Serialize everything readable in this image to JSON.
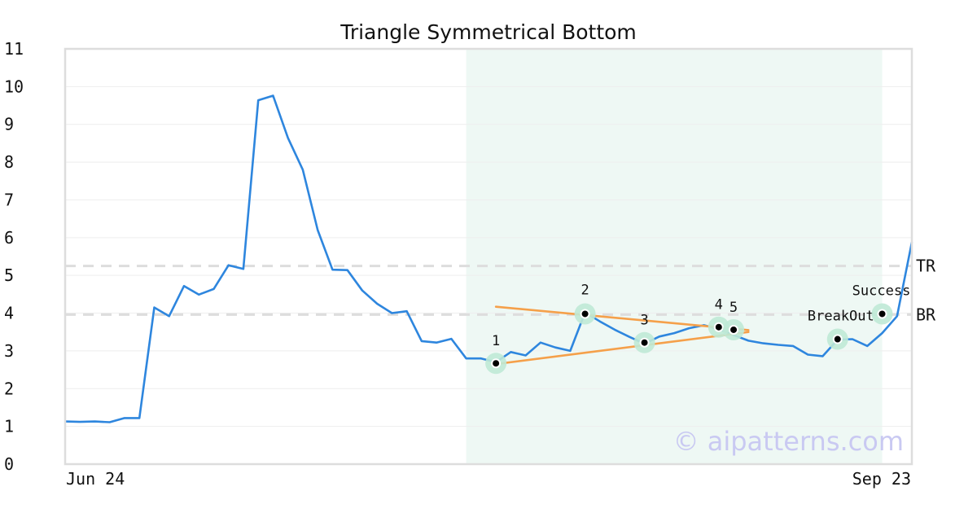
{
  "chart_data": {
    "type": "line",
    "title": "Triangle Symmetrical Bottom",
    "xlabel": "",
    "ylabel": "",
    "ylim": [
      0,
      11
    ],
    "y_ticks": [
      "0",
      "1",
      "2",
      "3",
      "4",
      "5",
      "6",
      "7",
      "8",
      "9",
      "10",
      "11"
    ],
    "x_tick_labels": [
      "Jun 24",
      "Sep 23"
    ],
    "grid": "horizontal",
    "line_color": "#2e86de",
    "trend_color": "#f5a04a",
    "highlight_color": "#eef8f4",
    "marker_halo_color": "#bfe9d6",
    "ref_line_color": "#dddddd",
    "series": [
      {
        "values": [
          1.13,
          1.12,
          1.13,
          1.11,
          1.22,
          1.22,
          4.15,
          3.92,
          4.72,
          4.49,
          4.64,
          5.27,
          5.17,
          9.64,
          9.76,
          8.64,
          7.8,
          6.2,
          5.15,
          5.14,
          4.6,
          4.25,
          4.0,
          4.05,
          3.26,
          3.22,
          3.32,
          2.8,
          2.8,
          2.7,
          2.97,
          2.88,
          3.22,
          3.09,
          3.0,
          4.02,
          3.78,
          3.56,
          3.37,
          3.19,
          3.38,
          3.47,
          3.6,
          3.68,
          3.58,
          3.42,
          3.27,
          3.2,
          3.16,
          3.13,
          2.9,
          2.86,
          3.3,
          3.31,
          3.13,
          3.47,
          3.92,
          5.88
        ]
      }
    ],
    "highlight_range": [
      27,
      55
    ],
    "trend_lines": [
      {
        "from": [
          29,
          4.17
        ],
        "to": [
          46,
          3.55
        ]
      },
      {
        "from": [
          29,
          2.65
        ],
        "to": [
          46,
          3.5
        ]
      }
    ],
    "pattern_points": [
      {
        "label": "1",
        "x": 29,
        "y": 2.67
      },
      {
        "label": "2",
        "x": 35,
        "y": 3.98
      },
      {
        "label": "3",
        "x": 39,
        "y": 3.22
      },
      {
        "label": "4",
        "x": 44,
        "y": 3.63
      },
      {
        "label": "5",
        "x": 45,
        "y": 3.56
      },
      {
        "label": "BreakOut",
        "x": 52,
        "y": 3.31
      },
      {
        "label": "Success",
        "x": 55,
        "y": 3.98
      }
    ],
    "reference_lines": [
      {
        "label": "TR",
        "y": 5.25
      },
      {
        "label": "BR",
        "y": 3.96
      }
    ],
    "watermark": "© aipatterns.com"
  }
}
